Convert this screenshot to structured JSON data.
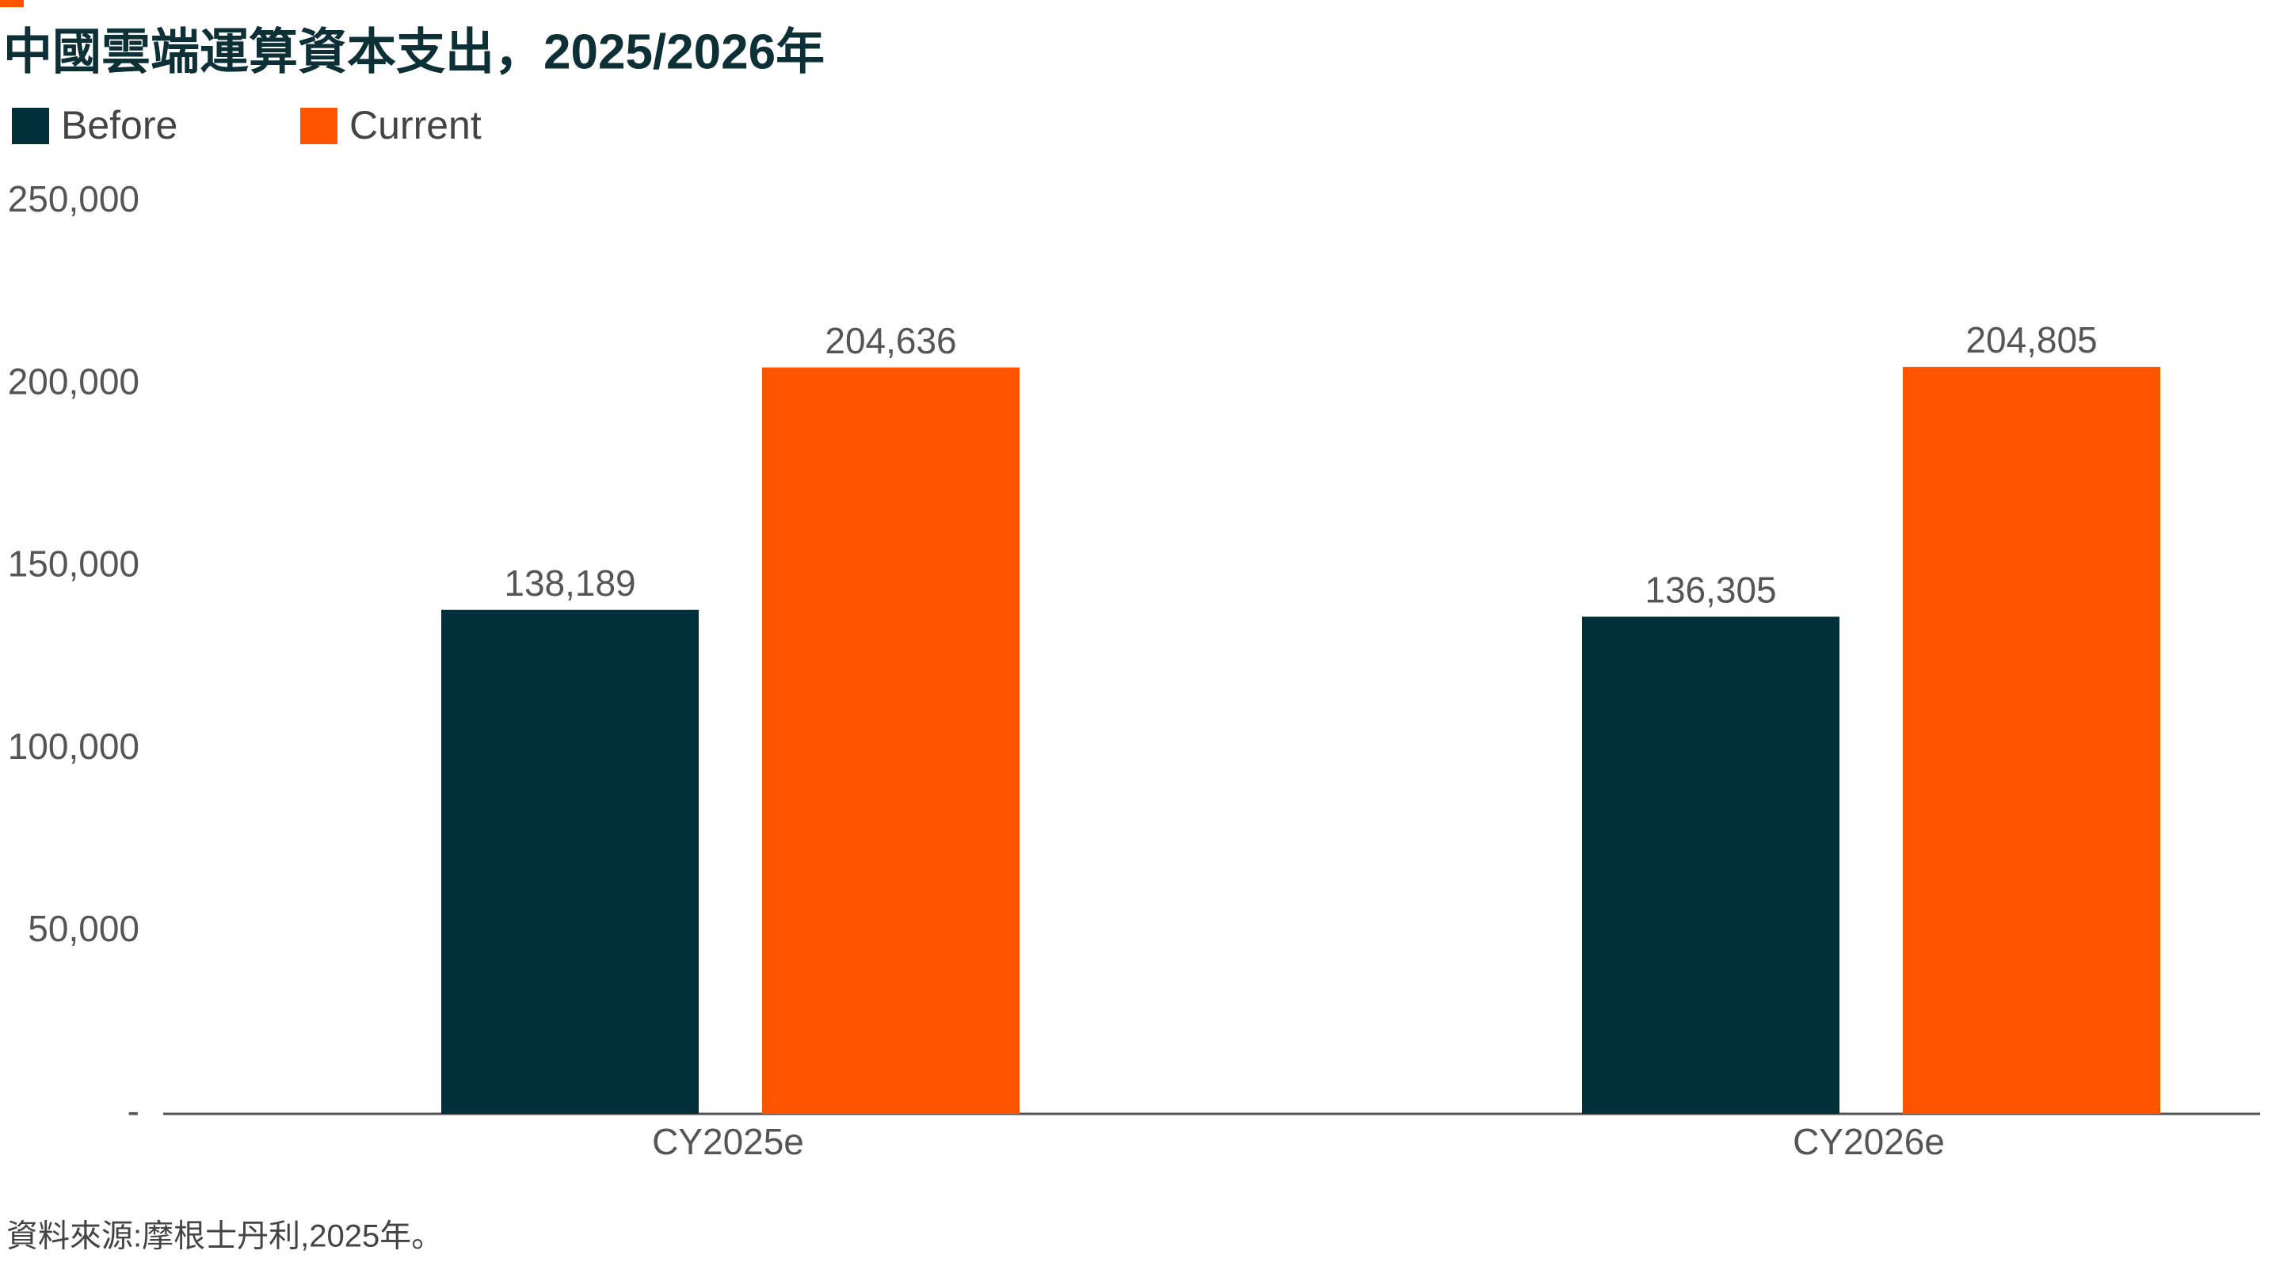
{
  "chart_data": {
    "type": "bar",
    "title": "中國雲端運算資本支出，2025/2026年",
    "categories": [
      "CY2025e",
      "CY2026e"
    ],
    "series": [
      {
        "name": "Before",
        "color": "#01303a",
        "values": [
          138189,
          136305
        ],
        "value_labels": [
          "138,189",
          "136,305"
        ]
      },
      {
        "name": "Current",
        "color": "#ff5500",
        "values": [
          204636,
          204805
        ],
        "value_labels": [
          "204,636",
          "204,805"
        ]
      }
    ],
    "ylim": [
      0,
      250000
    ],
    "yticks": [
      {
        "value": 0,
        "label": "-"
      },
      {
        "value": 50000,
        "label": "50,000"
      },
      {
        "value": 100000,
        "label": "100,000"
      },
      {
        "value": 150000,
        "label": "150,000"
      },
      {
        "value": 200000,
        "label": "200,000"
      },
      {
        "value": 250000,
        "label": "250,000"
      }
    ],
    "grid": false,
    "legend": "top-left",
    "source": "資料來源:摩根士丹利,2025年。"
  }
}
